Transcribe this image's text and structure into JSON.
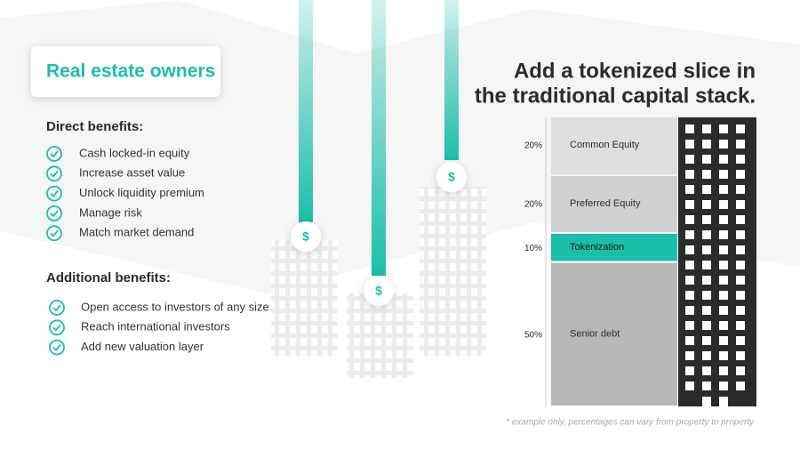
{
  "card": {
    "heading": "Real estate owners"
  },
  "sections": [
    {
      "title": "Direct benefits:",
      "items": [
        "Cash locked-in equity",
        "Increase asset value",
        "Unlock liquidity premium",
        "Manage risk",
        "Match market demand"
      ]
    },
    {
      "title": "Additional benefits:",
      "items": [
        "Open access to investors of any size",
        "Reach international investors",
        "Add new valuation layer"
      ]
    }
  ],
  "coin_symbol": "$",
  "capital_stack": {
    "title": [
      "Add a tokenized slice in",
      "the traditional capital stack."
    ],
    "categories": [
      "Common Equity",
      "Preferred Equity",
      "Tokenization",
      "Senior debt"
    ],
    "values": [
      20,
      20,
      10,
      50
    ],
    "value_labels": [
      "20%",
      "20%",
      "10%",
      "50%"
    ],
    "colors": [
      "#dedede",
      "#d0d0d0",
      "#1bbfa8",
      "#b8b8b8"
    ],
    "note": "* example only, percentages can vary from property to property"
  }
}
